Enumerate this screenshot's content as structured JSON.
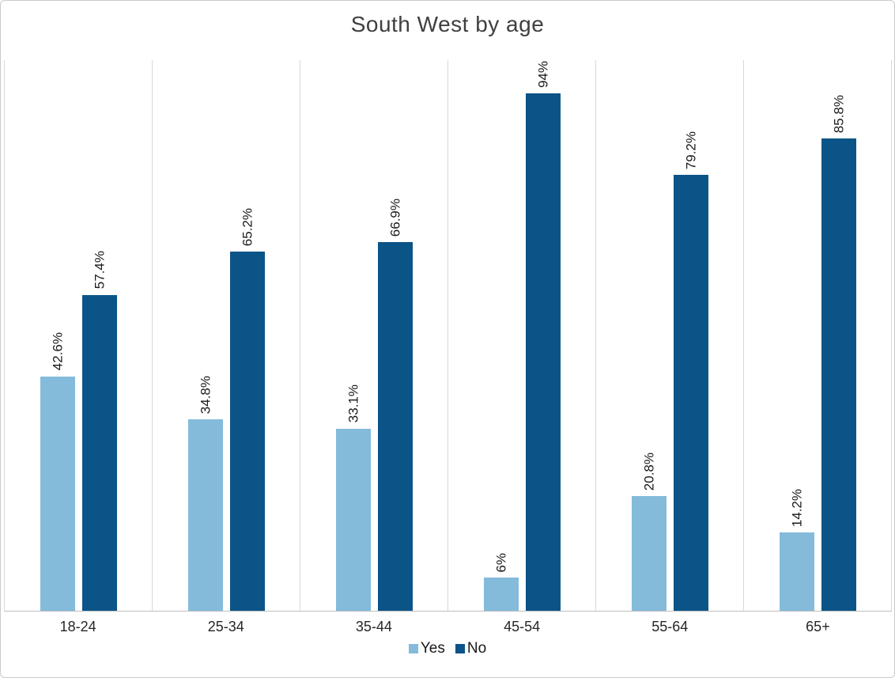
{
  "title": "South West by age",
  "chart_data": {
    "type": "bar",
    "categories": [
      "18-24",
      "25-34",
      "35-44",
      "45-54",
      "55-64",
      "65+"
    ],
    "series": [
      {
        "name": "Yes",
        "color": "#84bbdb",
        "values": [
          42.6,
          34.8,
          33.1,
          6,
          20.8,
          14.2
        ],
        "labels": [
          "42.6%",
          "34.8%",
          "33.1%",
          "6%",
          "20.8%",
          "14.2%"
        ]
      },
      {
        "name": "No",
        "color": "#0b5487",
        "values": [
          57.4,
          65.2,
          66.9,
          94,
          79.2,
          85.8
        ],
        "labels": [
          "57.4%",
          "65.2%",
          "66.9%",
          "94%",
          "79.2%",
          "85.8%"
        ]
      }
    ],
    "title": "South West by age",
    "xlabel": "",
    "ylabel": "",
    "ylim": [
      0,
      100
    ],
    "y_axis_visible": false,
    "grid": "vertical category boundaries",
    "gridline_color": "#d9d9d9",
    "axis_line_color": "#bfbfbf",
    "data_label_rotation": "90deg counterclockwise",
    "legend_position": "bottom-center"
  }
}
